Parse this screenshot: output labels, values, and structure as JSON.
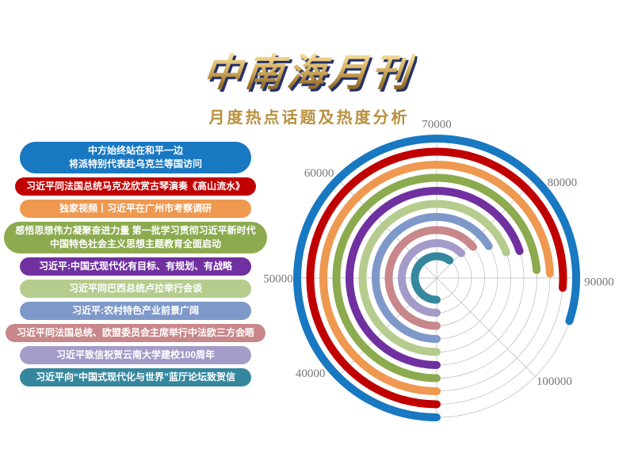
{
  "header": {
    "title": "中南海月刊",
    "subtitle": "月度热点话题及热度分析"
  },
  "topics": [
    {
      "label": "中方始终站在和平一边\n将派特别代表赴乌克兰等国访问",
      "color": "#1878c1",
      "value": 94000
    },
    {
      "label": "习近平同法国总统马克龙欣赏古琴演奏《高山流水》",
      "color": "#c00000",
      "value": 91000
    },
    {
      "label": "独家视频丨习近平在广州市考察调研",
      "color": "#ef9850",
      "value": 89500
    },
    {
      "label": "感悟思想伟力凝聚奋进力量 第一批学习贯彻习近平新时代\n中国特色社会主义思想主题教育全面启动",
      "color": "#8caa4e",
      "value": 89000
    },
    {
      "label": "习近平:中国式现代化有目标、有规划、有战略",
      "color": "#7030a0",
      "value": 86000
    },
    {
      "label": "习近平同巴西总统卢拉举行会谈",
      "color": "#b5cc8e",
      "value": 85500
    },
    {
      "label": "习近平:农村特色产业前景广阔",
      "color": "#7e99c9",
      "value": 83000
    },
    {
      "label": "习近平同法国总统、欧盟委员会主席举行中法欧三方会晤",
      "color": "#c8878a",
      "value": 81000
    },
    {
      "label": "习近平致信祝贺云南大学建校100周年",
      "color": "#a59bc8",
      "value": 80000
    },
    {
      "label": "习近平向“中国式现代化与世界”蓝厅论坛致贺信",
      "color": "#35879e",
      "value": 78000
    }
  ],
  "chart_data": {
    "type": "bar",
    "polar": true,
    "title": "月度热点话题及热度分析",
    "start_angle": "bottom",
    "direction": "clockwise",
    "scale_min": 30000,
    "scale_max": 110000,
    "ticks": [
      40000,
      50000,
      60000,
      70000,
      80000,
      90000,
      100000
    ],
    "grid": true,
    "series": [
      {
        "name": "中方始终站在和平一边 将派特别代表赴乌克兰等国访问",
        "value": 94000,
        "color": "#1878c1"
      },
      {
        "name": "习近平同法国总统马克龙欣赏古琴演奏《高山流水》",
        "value": 91000,
        "color": "#c00000"
      },
      {
        "name": "独家视频丨习近平在广州市考察调研",
        "value": 89500,
        "color": "#ef9850"
      },
      {
        "name": "感悟思想伟力凝聚奋进力量 第一批学习贯彻习近平新时代中国特色社会主义思想主题教育全面启动",
        "value": 89000,
        "color": "#8caa4e"
      },
      {
        "name": "习近平:中国式现代化有目标、有规划、有战略",
        "value": 86000,
        "color": "#7030a0"
      },
      {
        "name": "习近平同巴西总统卢拉举行会谈",
        "value": 85500,
        "color": "#b5cc8e"
      },
      {
        "name": "习近平:农村特色产业前景广阔",
        "value": 83000,
        "color": "#7e99c9"
      },
      {
        "name": "习近平同法国总统、欧盟委员会主席举行中法欧三方会晤",
        "value": 81000,
        "color": "#c8878a"
      },
      {
        "name": "习近平致信祝贺云南大学建校100周年",
        "value": 80000,
        "color": "#a59bc8"
      },
      {
        "name": "习近平向“中国式现代化与世界”蓝厅论坛致贺信",
        "value": 78000,
        "color": "#35879e"
      }
    ]
  }
}
